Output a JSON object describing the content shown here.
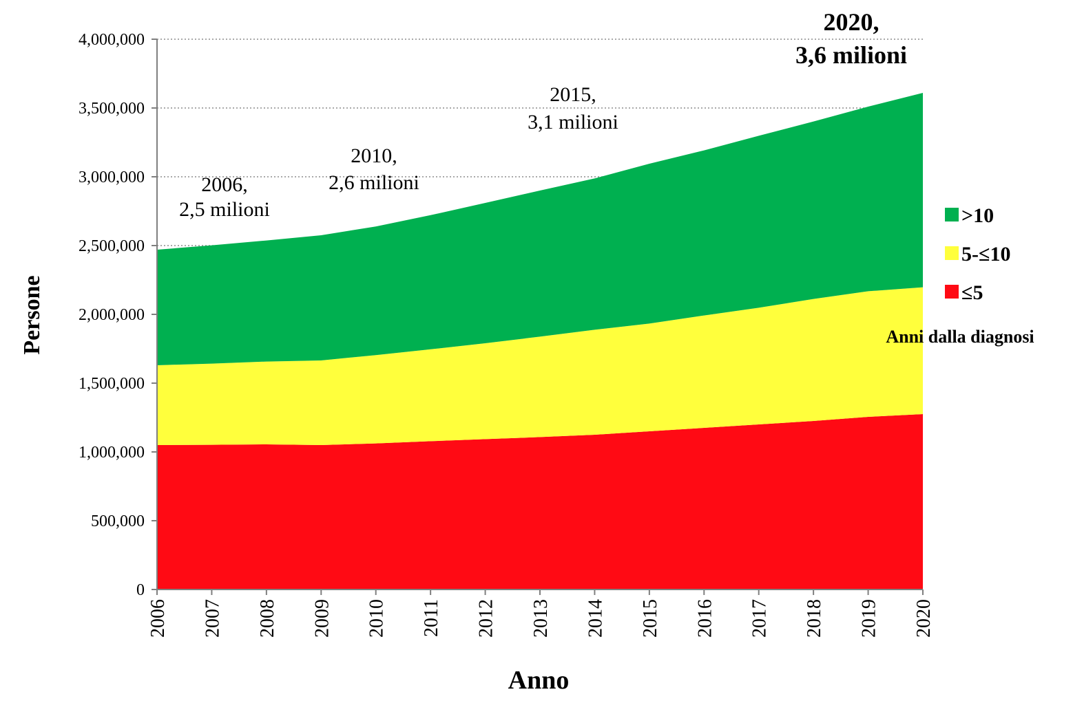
{
  "chart_data": {
    "type": "area",
    "stacked": true,
    "xlabel": "Anno",
    "ylabel": "Persone",
    "ylim": [
      0,
      4000000
    ],
    "y_ticks": [
      0,
      500000,
      1000000,
      1500000,
      2000000,
      2500000,
      3000000,
      3500000,
      4000000
    ],
    "y_tick_labels": [
      "0",
      "500,000",
      "1,000,000",
      "1,500,000",
      "2,000,000",
      "2,500,000",
      "3,000,000",
      "3,500,000",
      "4,000,000"
    ],
    "grid": "horizontal dotted",
    "x": [
      "2006",
      "2007",
      "2008",
      "2009",
      "2010",
      "2011",
      "2012",
      "2013",
      "2014",
      "2015",
      "2016",
      "2017",
      "2018",
      "2019",
      "2020"
    ],
    "series": [
      {
        "name": "≤5",
        "color": "#ff0a14",
        "values": [
          1050000,
          1052000,
          1055000,
          1050000,
          1062000,
          1078000,
          1093000,
          1108000,
          1125000,
          1150000,
          1175000,
          1200000,
          1225000,
          1255000,
          1275000
        ]
      },
      {
        "name": "5-≤10",
        "color": "#ffff3c",
        "values": [
          580000,
          590000,
          602000,
          615000,
          642000,
          668000,
          697000,
          730000,
          763000,
          783000,
          817000,
          848000,
          887000,
          913000,
          922000
        ]
      },
      {
        "name": ">10",
        "color": "#00b050",
        "values": [
          840000,
          860000,
          880000,
          910000,
          935000,
          975000,
          1020000,
          1062000,
          1100000,
          1162000,
          1200000,
          1250000,
          1290000,
          1342000,
          1413000
        ]
      }
    ],
    "legend": {
      "title": "Anni dalla diagnosi",
      "position": "right",
      "items": [
        ">10",
        "5-≤10",
        "≤5"
      ]
    },
    "annotations": [
      {
        "line1": "2006,",
        "line2": "2,5 milioni",
        "bold": false
      },
      {
        "line1": "2010,",
        "line2": "2,6 milioni",
        "bold": false
      },
      {
        "line1": "2015,",
        "line2": "3,1 milioni",
        "bold": false
      },
      {
        "line1": "2020,",
        "line2": "3,6 milioni",
        "bold": true
      }
    ]
  }
}
